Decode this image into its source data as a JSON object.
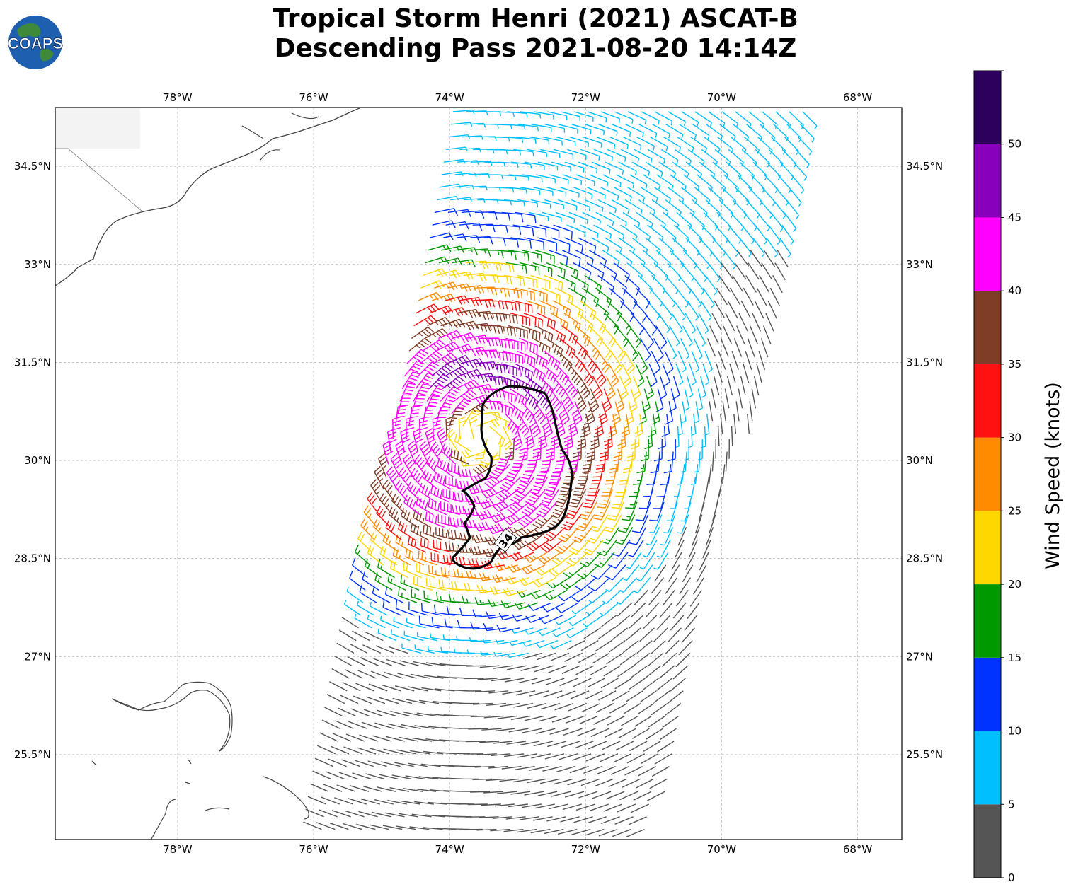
{
  "header": {
    "title_line1": "Tropical Storm Henri (2021) ASCAT-B",
    "title_line2": "Descending Pass 2021-08-20 14:14Z",
    "logo_text": "COAPS"
  },
  "map": {
    "lon_range": [
      -79.8,
      -67.35
    ],
    "lat_range": [
      24.2,
      35.4
    ],
    "lon_ticks": [
      {
        "value": -78,
        "label": "78°W"
      },
      {
        "value": -76,
        "label": "76°W"
      },
      {
        "value": -74,
        "label": "74°W"
      },
      {
        "value": -72,
        "label": "72°W"
      },
      {
        "value": -70,
        "label": "70°W"
      },
      {
        "value": -68,
        "label": "68°W"
      }
    ],
    "lat_ticks": [
      {
        "value": 34.5,
        "label": "34.5°N"
      },
      {
        "value": 33,
        "label": "33°N"
      },
      {
        "value": 31.5,
        "label": "31.5°N"
      },
      {
        "value": 30,
        "label": "30°N"
      },
      {
        "value": 28.5,
        "label": "28.5°N"
      },
      {
        "value": 27,
        "label": "27°N"
      },
      {
        "value": 25.5,
        "label": "25.5°N"
      }
    ],
    "gridlines": true,
    "storm_center": {
      "lon": -73.55,
      "lat": 30.35
    },
    "contour_label": "34"
  },
  "colorbar": {
    "title": "Wind Speed (knots)",
    "levels": [
      0,
      5,
      10,
      15,
      20,
      25,
      30,
      35,
      40,
      45,
      50,
      55
    ],
    "tick_labels": [
      "0",
      "5",
      "10",
      "15",
      "20",
      "25",
      "30",
      "35",
      "40",
      "45",
      "50"
    ],
    "colors": [
      "#555555",
      "#00bfff",
      "#0033ff",
      "#009900",
      "#ffd700",
      "#ff8c00",
      "#ff1111",
      "#803d26",
      "#ff00ff",
      "#8800bb",
      "#2e005e"
    ]
  }
}
